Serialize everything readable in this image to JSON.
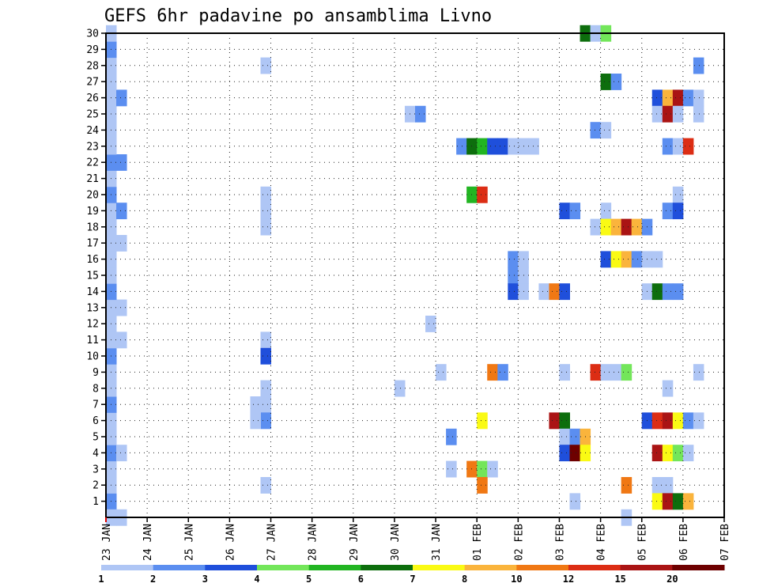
{
  "chart_data": {
    "type": "heatmap",
    "title": "GEFS 6hr padavine po ansamblima Livno",
    "x_tick_labels": [
      "23 JAN",
      "24 JAN",
      "25 JAN",
      "26 JAN",
      "27 JAN",
      "28 JAN",
      "29 JAN",
      "30 JAN",
      "31 JAN",
      "01 FEB",
      "02 FEB",
      "03 FEB",
      "04 FEB",
      "05 FEB",
      "06 FEB",
      "07 FEB"
    ],
    "y_tick_labels": [
      "1",
      "2",
      "3",
      "4",
      "5",
      "6",
      "7",
      "8",
      "9",
      "10",
      "11",
      "12",
      "13",
      "14",
      "15",
      "16",
      "17",
      "18",
      "19",
      "20",
      "21",
      "22",
      "23",
      "24",
      "25",
      "26",
      "27",
      "28",
      "29",
      "30"
    ],
    "ylim": [
      0,
      30
    ],
    "grid": true,
    "legend": "colorbar-bottom",
    "colorbar_labels": [
      "1",
      "2",
      "3",
      "4",
      "5",
      "6",
      "7",
      "8",
      "10",
      "12",
      "15",
      "20"
    ],
    "colors": [
      "#afc6f5",
      "#5b8ef0",
      "#1f4fdb",
      "#73e65a",
      "#22b522",
      "#0d6e0d",
      "#fafa14",
      "#fab43c",
      "#f07814",
      "#dc2d14",
      "#aa1414",
      "#6e0000"
    ],
    "data": [
      {
        "t": 0,
        "m": 1,
        "c": 1
      },
      {
        "t": 0,
        "m": 2,
        "c": 0
      },
      {
        "t": 0,
        "m": 3,
        "c": 0
      },
      {
        "t": 0,
        "m": 4,
        "c": 1
      },
      {
        "t": 1,
        "m": 4,
        "c": 0
      },
      {
        "t": 0,
        "m": 5,
        "c": 0
      },
      {
        "t": 0,
        "m": 6,
        "c": 0
      },
      {
        "t": 0,
        "m": 7,
        "c": 1
      },
      {
        "t": 0,
        "m": 8,
        "c": 0
      },
      {
        "t": 0,
        "m": 9,
        "c": 0
      },
      {
        "t": 0,
        "m": 10,
        "c": 1
      },
      {
        "t": 0,
        "m": 11,
        "c": 0
      },
      {
        "t": 1,
        "m": 11,
        "c": 0
      },
      {
        "t": 0,
        "m": 12,
        "c": 0
      },
      {
        "t": 0,
        "m": 13,
        "c": 0
      },
      {
        "t": 1,
        "m": 13,
        "c": 0
      },
      {
        "t": 0,
        "m": 14,
        "c": 1
      },
      {
        "t": 0,
        "m": 15,
        "c": 0
      },
      {
        "t": 0,
        "m": 16,
        "c": 0
      },
      {
        "t": 0,
        "m": 17,
        "c": 0
      },
      {
        "t": 1,
        "m": 17,
        "c": 0
      },
      {
        "t": 0,
        "m": 18,
        "c": 0
      },
      {
        "t": 0,
        "m": 19,
        "c": 0
      },
      {
        "t": 1,
        "m": 19,
        "c": 1
      },
      {
        "t": 0,
        "m": 20,
        "c": 1
      },
      {
        "t": 0,
        "m": 21,
        "c": 0
      },
      {
        "t": 0,
        "m": 22,
        "c": 1
      },
      {
        "t": 1,
        "m": 22,
        "c": 1
      },
      {
        "t": 0,
        "m": 23,
        "c": 0
      },
      {
        "t": 0,
        "m": 24,
        "c": 0
      },
      {
        "t": 0,
        "m": 25,
        "c": 0
      },
      {
        "t": 0,
        "m": 26,
        "c": 0
      },
      {
        "t": 1,
        "m": 26,
        "c": 1
      },
      {
        "t": 0,
        "m": 27,
        "c": 0
      },
      {
        "t": 0,
        "m": 28,
        "c": 0
      },
      {
        "t": 0,
        "m": 29,
        "c": 1
      },
      {
        "t": 0,
        "m": 30,
        "c": 0
      },
      {
        "t": 0,
        "m": 0,
        "c": 0
      },
      {
        "t": 1,
        "m": 0,
        "c": 0
      },
      {
        "t": 15,
        "m": 20,
        "c": 0
      },
      {
        "t": 15,
        "m": 19,
        "c": 0
      },
      {
        "t": 15,
        "m": 18,
        "c": 0
      },
      {
        "t": 15,
        "m": 11,
        "c": 0
      },
      {
        "t": 15,
        "m": 10,
        "c": 2
      },
      {
        "t": 15,
        "m": 8,
        "c": 0
      },
      {
        "t": 15,
        "m": 7,
        "c": 0
      },
      {
        "t": 15,
        "m": 6,
        "c": 1
      },
      {
        "t": 14,
        "m": 7,
        "c": 0
      },
      {
        "t": 14,
        "m": 6,
        "c": 0
      },
      {
        "t": 15,
        "m": 2,
        "c": 0
      },
      {
        "t": 15,
        "m": 28,
        "c": 0
      },
      {
        "t": 29,
        "m": 25,
        "c": 0
      },
      {
        "t": 30,
        "m": 25,
        "c": 1
      },
      {
        "t": 28,
        "m": 8,
        "c": 0
      },
      {
        "t": 32,
        "m": 9,
        "c": 0
      },
      {
        "t": 31,
        "m": 12,
        "c": 0
      },
      {
        "t": 33,
        "m": 5,
        "c": 1
      },
      {
        "t": 33,
        "m": 3,
        "c": 0
      },
      {
        "t": 34,
        "m": 23,
        "c": 1
      },
      {
        "t": 35,
        "m": 23,
        "c": 5
      },
      {
        "t": 36,
        "m": 23,
        "c": 4
      },
      {
        "t": 37,
        "m": 23,
        "c": 2
      },
      {
        "t": 38,
        "m": 23,
        "c": 2
      },
      {
        "t": 35,
        "m": 20,
        "c": 4
      },
      {
        "t": 36,
        "m": 20,
        "c": 9
      },
      {
        "t": 36,
        "m": 6,
        "c": 6
      },
      {
        "t": 35,
        "m": 3,
        "c": 8
      },
      {
        "t": 36,
        "m": 3,
        "c": 3
      },
      {
        "t": 37,
        "m": 3,
        "c": 0
      },
      {
        "t": 36,
        "m": 2,
        "c": 8
      },
      {
        "t": 37,
        "m": 9,
        "c": 8
      },
      {
        "t": 38,
        "m": 9,
        "c": 1
      },
      {
        "t": 39,
        "m": 23,
        "c": 0
      },
      {
        "t": 40,
        "m": 23,
        "c": 0
      },
      {
        "t": 41,
        "m": 23,
        "c": 0
      },
      {
        "t": 39,
        "m": 16,
        "c": 1
      },
      {
        "t": 40,
        "m": 16,
        "c": 0
      },
      {
        "t": 39,
        "m": 15,
        "c": 1
      },
      {
        "t": 40,
        "m": 15,
        "c": 0
      },
      {
        "t": 39,
        "m": 14,
        "c": 2
      },
      {
        "t": 40,
        "m": 14,
        "c": 0
      },
      {
        "t": 42,
        "m": 14,
        "c": 0
      },
      {
        "t": 43,
        "m": 14,
        "c": 8
      },
      {
        "t": 44,
        "m": 14,
        "c": 2
      },
      {
        "t": 43,
        "m": 6,
        "c": 10
      },
      {
        "t": 44,
        "m": 6,
        "c": 5
      },
      {
        "t": 44,
        "m": 5,
        "c": 0
      },
      {
        "t": 45,
        "m": 5,
        "c": 1
      },
      {
        "t": 46,
        "m": 5,
        "c": 7
      },
      {
        "t": 44,
        "m": 4,
        "c": 2
      },
      {
        "t": 45,
        "m": 4,
        "c": 11
      },
      {
        "t": 46,
        "m": 4,
        "c": 6
      },
      {
        "t": 44,
        "m": 9,
        "c": 0
      },
      {
        "t": 44,
        "m": 19,
        "c": 2
      },
      {
        "t": 45,
        "m": 19,
        "c": 1
      },
      {
        "t": 45,
        "m": 1,
        "c": 0
      },
      {
        "t": 46,
        "m": 30,
        "c": 5
      },
      {
        "t": 47,
        "m": 30,
        "c": 0
      },
      {
        "t": 48,
        "m": 30,
        "c": 3
      },
      {
        "t": 48,
        "m": 27,
        "c": 5
      },
      {
        "t": 49,
        "m": 27,
        "c": 1
      },
      {
        "t": 47,
        "m": 24,
        "c": 1
      },
      {
        "t": 48,
        "m": 24,
        "c": 0
      },
      {
        "t": 48,
        "m": 19,
        "c": 0
      },
      {
        "t": 47,
        "m": 18,
        "c": 0
      },
      {
        "t": 48,
        "m": 18,
        "c": 6
      },
      {
        "t": 49,
        "m": 18,
        "c": 7
      },
      {
        "t": 50,
        "m": 18,
        "c": 10
      },
      {
        "t": 51,
        "m": 18,
        "c": 7
      },
      {
        "t": 52,
        "m": 18,
        "c": 1
      },
      {
        "t": 48,
        "m": 16,
        "c": 2
      },
      {
        "t": 49,
        "m": 16,
        "c": 6
      },
      {
        "t": 50,
        "m": 16,
        "c": 7
      },
      {
        "t": 51,
        "m": 16,
        "c": 1
      },
      {
        "t": 52,
        "m": 16,
        "c": 0
      },
      {
        "t": 47,
        "m": 9,
        "c": 9
      },
      {
        "t": 48,
        "m": 9,
        "c": 0
      },
      {
        "t": 49,
        "m": 9,
        "c": 0
      },
      {
        "t": 50,
        "m": 9,
        "c": 3
      },
      {
        "t": 50,
        "m": 2,
        "c": 8
      },
      {
        "t": 50,
        "m": 0,
        "c": 0
      },
      {
        "t": 53,
        "m": 26,
        "c": 2
      },
      {
        "t": 54,
        "m": 26,
        "c": 7
      },
      {
        "t": 55,
        "m": 26,
        "c": 10
      },
      {
        "t": 56,
        "m": 26,
        "c": 1
      },
      {
        "t": 57,
        "m": 26,
        "c": 0
      },
      {
        "t": 53,
        "m": 25,
        "c": 0
      },
      {
        "t": 54,
        "m": 25,
        "c": 10
      },
      {
        "t": 55,
        "m": 25,
        "c": 0
      },
      {
        "t": 57,
        "m": 25,
        "c": 0
      },
      {
        "t": 54,
        "m": 23,
        "c": 1
      },
      {
        "t": 55,
        "m": 23,
        "c": 0
      },
      {
        "t": 56,
        "m": 23,
        "c": 9
      },
      {
        "t": 55,
        "m": 20,
        "c": 0
      },
      {
        "t": 54,
        "m": 19,
        "c": 1
      },
      {
        "t": 55,
        "m": 19,
        "c": 2
      },
      {
        "t": 53,
        "m": 16,
        "c": 0
      },
      {
        "t": 52,
        "m": 14,
        "c": 0
      },
      {
        "t": 53,
        "m": 14,
        "c": 5
      },
      {
        "t": 54,
        "m": 14,
        "c": 1
      },
      {
        "t": 55,
        "m": 14,
        "c": 1
      },
      {
        "t": 54,
        "m": 8,
        "c": 0
      },
      {
        "t": 52,
        "m": 6,
        "c": 2
      },
      {
        "t": 53,
        "m": 6,
        "c": 9
      },
      {
        "t": 54,
        "m": 6,
        "c": 10
      },
      {
        "t": 55,
        "m": 6,
        "c": 6
      },
      {
        "t": 56,
        "m": 6,
        "c": 1
      },
      {
        "t": 57,
        "m": 6,
        "c": 0
      },
      {
        "t": 53,
        "m": 4,
        "c": 10
      },
      {
        "t": 54,
        "m": 4,
        "c": 6
      },
      {
        "t": 55,
        "m": 4,
        "c": 3
      },
      {
        "t": 56,
        "m": 4,
        "c": 0
      },
      {
        "t": 53,
        "m": 2,
        "c": 0
      },
      {
        "t": 54,
        "m": 2,
        "c": 0
      },
      {
        "t": 53,
        "m": 1,
        "c": 6
      },
      {
        "t": 54,
        "m": 1,
        "c": 10
      },
      {
        "t": 55,
        "m": 1,
        "c": 5
      },
      {
        "t": 56,
        "m": 1,
        "c": 7
      },
      {
        "t": 57,
        "m": 28,
        "c": 1
      },
      {
        "t": 57,
        "m": 9,
        "c": 0
      }
    ]
  }
}
